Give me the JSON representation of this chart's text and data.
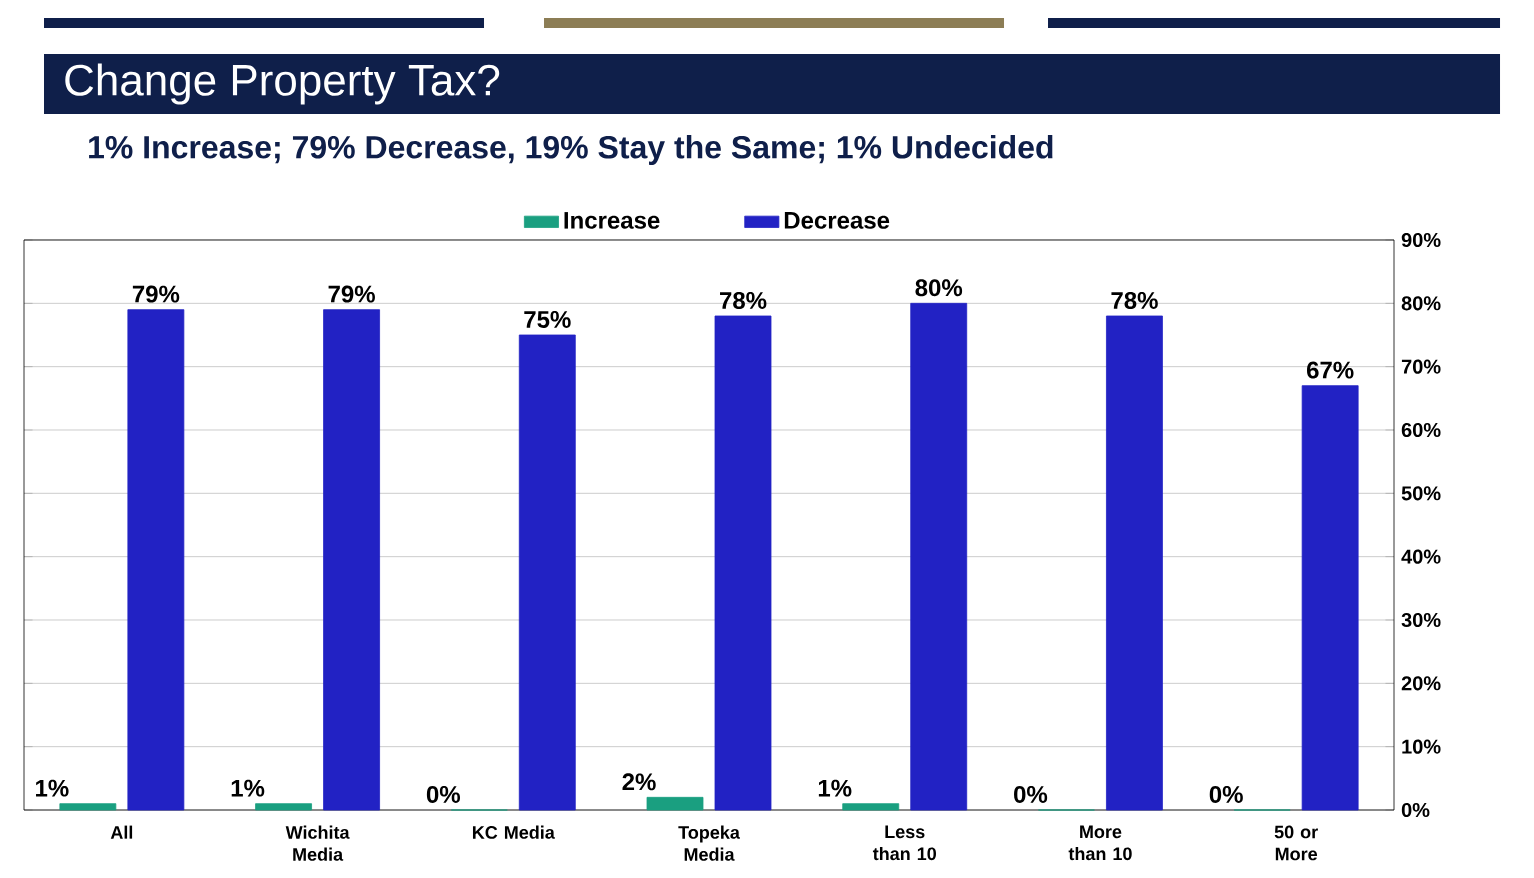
{
  "chart_data": {
    "type": "bar",
    "title": "Change Property Tax?",
    "subtitle": "1% Increase; 79% Decrease, 19% Stay the Same; 1% Undecided",
    "categories": [
      "All",
      "Wichita Media",
      "KC Media",
      "Topeka Media",
      "Less than 10",
      "More than 10",
      "50 or More"
    ],
    "series": [
      {
        "name": "Increase",
        "color": "#1a9f80",
        "values": [
          1,
          1,
          0,
          2,
          1,
          0,
          0
        ],
        "value_labels": [
          "1%",
          "1%",
          "0%",
          "2%",
          "1%",
          "0%",
          "0%"
        ]
      },
      {
        "name": "Decrease",
        "color": "#2222c4",
        "values": [
          79,
          79,
          75,
          78,
          80,
          78,
          67
        ],
        "value_labels": [
          "79%",
          "79%",
          "75%",
          "78%",
          "80%",
          "78%",
          "67%"
        ]
      }
    ],
    "ylim": [
      0,
      90
    ],
    "yticks": [
      {
        "value": 0,
        "label": "0%"
      },
      {
        "value": 10,
        "label": "10%"
      },
      {
        "value": 20,
        "label": "20%"
      },
      {
        "value": 30,
        "label": "30%"
      },
      {
        "value": 40,
        "label": "40%"
      },
      {
        "value": 50,
        "label": "50%"
      },
      {
        "value": 60,
        "label": "60%"
      },
      {
        "value": 70,
        "label": "70%"
      },
      {
        "value": 80,
        "label": "80%"
      },
      {
        "value": 90,
        "label": "90%"
      }
    ],
    "grid": "y",
    "legend": "top"
  }
}
